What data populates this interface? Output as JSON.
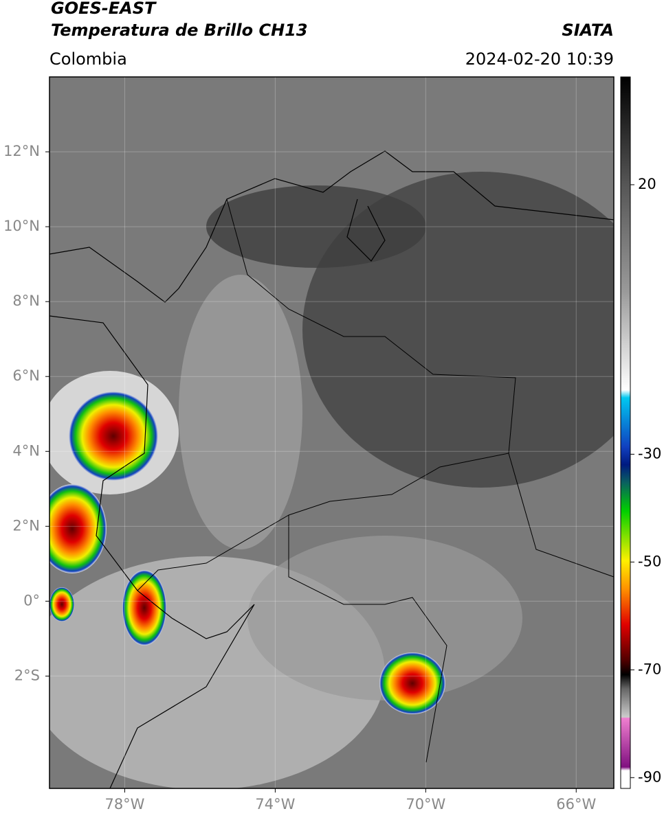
{
  "header": {
    "title": "GOES-EAST",
    "subtitle": "Temperatura de Brillo CH13",
    "region": "Colombia",
    "source": "SIATA",
    "datetime": "2024-02-20 10:39"
  },
  "map": {
    "xlim": [
      -80,
      -65
    ],
    "ylim": [
      -5,
      14
    ],
    "yticks": [
      {
        "value": 12,
        "label": "12°N"
      },
      {
        "value": 10,
        "label": "10°N"
      },
      {
        "value": 8,
        "label": "8°N"
      },
      {
        "value": 6,
        "label": "6°N"
      },
      {
        "value": 4,
        "label": "4°N"
      },
      {
        "value": 2,
        "label": "2°N"
      },
      {
        "value": 0,
        "label": "0°"
      },
      {
        "value": -2,
        "label": "2°S"
      }
    ],
    "xticks": [
      {
        "value": -78,
        "label": "78°W"
      },
      {
        "value": -74,
        "label": "74°W"
      },
      {
        "value": -70,
        "label": "70°W"
      },
      {
        "value": -66,
        "label": "66°W"
      }
    ]
  },
  "colorbar": {
    "lim": [
      -92,
      40
    ],
    "ticks": [
      20,
      -30,
      -50,
      -70,
      -90
    ]
  }
}
